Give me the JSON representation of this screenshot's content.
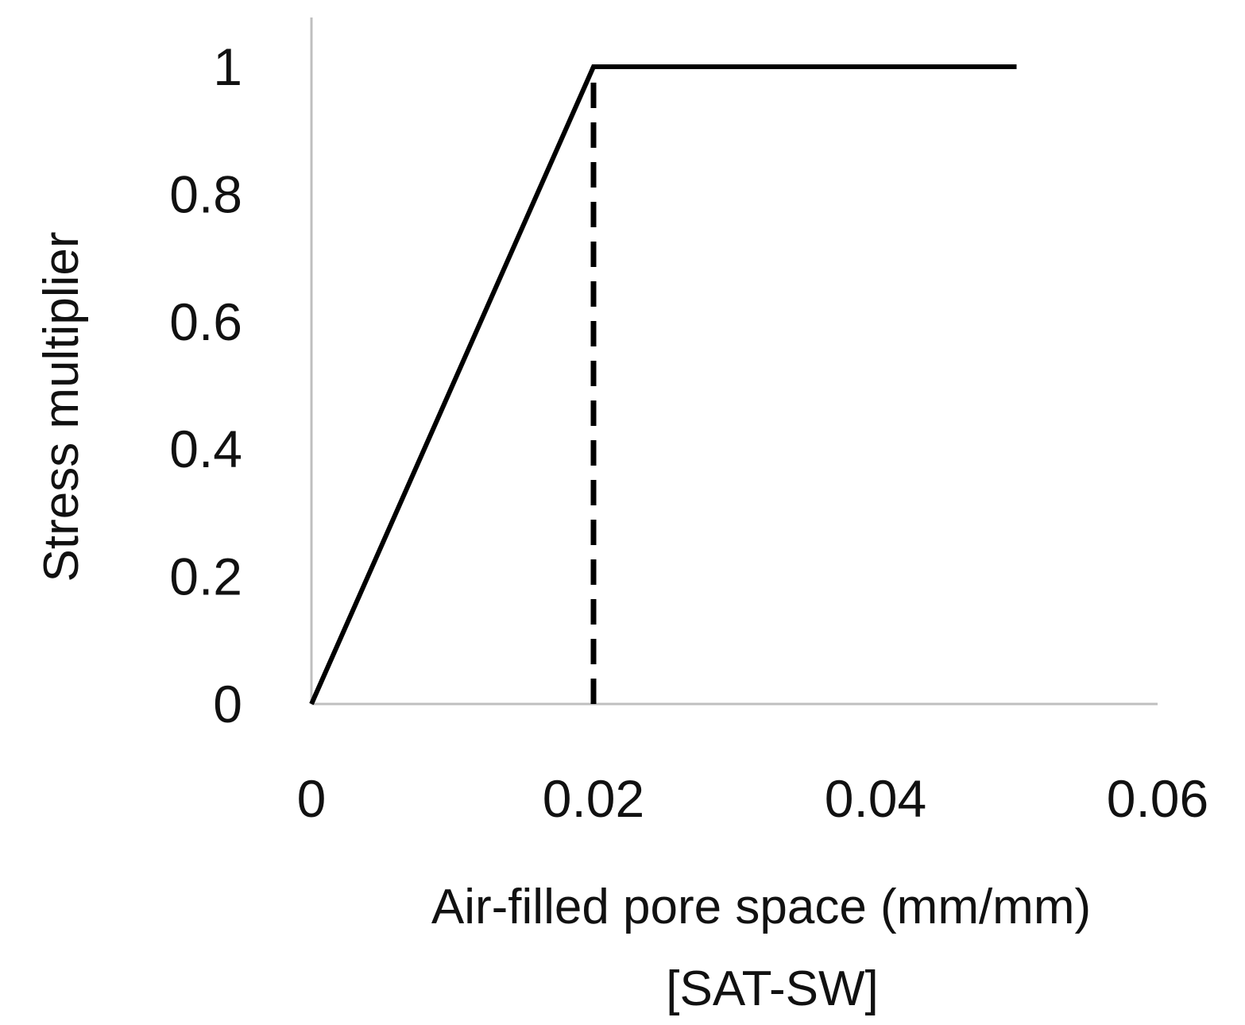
{
  "chart_data": {
    "type": "line",
    "title": "",
    "xlabel": "Air-filled pore space (mm/mm)",
    "xlabel_line2": "[SAT-SW]",
    "ylabel": "Stress multiplier",
    "xlim": [
      0,
      0.06
    ],
    "ylim": [
      0,
      1
    ],
    "x_ticks": [
      "0",
      "0.02",
      "0.04",
      "0.06"
    ],
    "y_ticks": [
      "0",
      "0.2",
      "0.4",
      "0.6",
      "0.8",
      "1"
    ],
    "grid": false,
    "legend": "none",
    "series": [
      {
        "style": "solid",
        "color": "#000000",
        "points": [
          [
            0,
            0
          ],
          [
            0.02,
            1
          ],
          [
            0.05,
            1
          ]
        ]
      },
      {
        "style": "dashed",
        "color": "#000000",
        "points": [
          [
            0.02,
            0
          ],
          [
            0.02,
            1
          ]
        ]
      }
    ],
    "axis_color": "#bfbfbf"
  }
}
